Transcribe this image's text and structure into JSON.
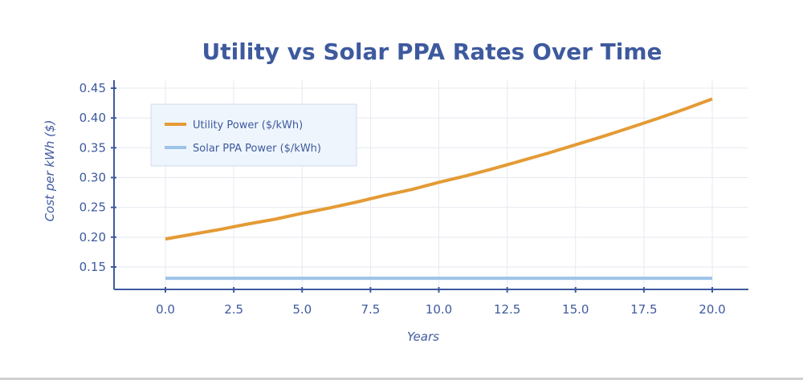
{
  "chart_data": {
    "type": "line",
    "title": "Utility vs Solar PPA Rates Over Time",
    "xlabel": "Years",
    "ylabel": "Cost per kWh ($)",
    "xlim": [
      -2.0,
      21.3
    ],
    "ylim": [
      0.117,
      0.46
    ],
    "x_ticks": [
      0.0,
      2.5,
      5.0,
      7.5,
      10.0,
      12.5,
      15.0,
      17.5,
      20.0
    ],
    "x_tick_labels": [
      "0.0",
      "2.5",
      "5.0",
      "7.5",
      "10.0",
      "12.5",
      "15.0",
      "17.5",
      "20.0"
    ],
    "y_ticks": [
      0.15,
      0.2,
      0.25,
      0.3,
      0.35,
      0.4,
      0.45
    ],
    "y_tick_labels": [
      "0.15",
      "0.20",
      "0.25",
      "0.30",
      "0.35",
      "0.40",
      "0.45"
    ],
    "grid": true,
    "legend_position": "top-left",
    "x": [
      0,
      1,
      2,
      3,
      4,
      5,
      6,
      7,
      8,
      9,
      10,
      11,
      12,
      13,
      14,
      15,
      16,
      17,
      18,
      19,
      20
    ],
    "series": [
      {
        "name": "Utility Power ($/kWh)",
        "color": "#e49b35",
        "values": [
          0.197,
          0.205,
          0.213,
          0.222,
          0.23,
          0.24,
          0.249,
          0.259,
          0.27,
          0.28,
          0.292,
          0.303,
          0.315,
          0.328,
          0.341,
          0.355,
          0.369,
          0.384,
          0.399,
          0.415,
          0.432
        ]
      },
      {
        "name": "Solar PPA Power ($/kWh)",
        "color": "#9dc3e8",
        "values": [
          0.131,
          0.131,
          0.131,
          0.131,
          0.131,
          0.131,
          0.131,
          0.131,
          0.131,
          0.131,
          0.131,
          0.131,
          0.131,
          0.131,
          0.131,
          0.131,
          0.131,
          0.131,
          0.131,
          0.131,
          0.131
        ]
      }
    ]
  }
}
